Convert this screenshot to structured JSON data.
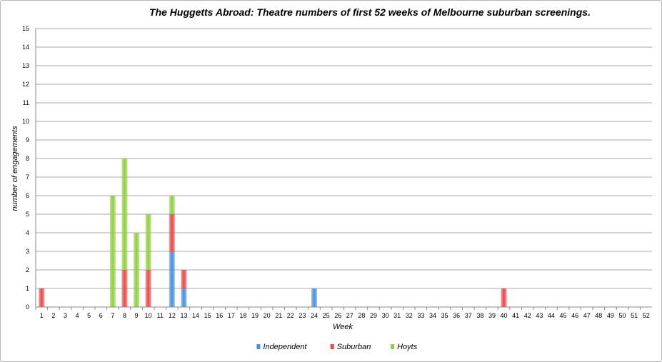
{
  "chart_data": {
    "type": "bar",
    "stacked": true,
    "title": "The Huggetts Abroad: Theatre numbers of first 52 weeks of Melbourne suburban screenings.",
    "xlabel": "Week",
    "ylabel": "number of engagements",
    "ylim": [
      0,
      15
    ],
    "yticks": [
      "0",
      "1",
      "2",
      "3",
      "4",
      "5",
      "6",
      "7",
      "8",
      "9",
      "10",
      "11",
      "12",
      "13",
      "14",
      "15"
    ],
    "categories": [
      "1",
      "2",
      "3",
      "4",
      "5",
      "6",
      "7",
      "8",
      "9",
      "10",
      "11",
      "12",
      "13",
      "14",
      "15",
      "16",
      "17",
      "18",
      "19",
      "20",
      "21",
      "22",
      "23",
      "24",
      "25",
      "26",
      "27",
      "28",
      "29",
      "30",
      "31",
      "32",
      "33",
      "34",
      "35",
      "36",
      "37",
      "38",
      "39",
      "40",
      "41",
      "42",
      "43",
      "44",
      "45",
      "46",
      "47",
      "48",
      "49",
      "50",
      "51",
      "52"
    ],
    "grid": true,
    "legend_position": "bottom",
    "series": [
      {
        "name": "Independent",
        "color": "#4a90d9",
        "values": [
          0,
          0,
          0,
          0,
          0,
          0,
          0,
          0,
          0,
          0,
          0,
          3,
          1,
          0,
          0,
          0,
          0,
          0,
          0,
          0,
          0,
          0,
          0,
          1,
          0,
          0,
          0,
          0,
          0,
          0,
          0,
          0,
          0,
          0,
          0,
          0,
          0,
          0,
          0,
          0,
          0,
          0,
          0,
          0,
          0,
          0,
          0,
          0,
          0,
          0,
          0,
          0
        ]
      },
      {
        "name": "Suburban",
        "color": "#e84a4a",
        "values": [
          1,
          0,
          0,
          0,
          0,
          0,
          0,
          2,
          0,
          2,
          0,
          2,
          1,
          0,
          0,
          0,
          0,
          0,
          0,
          0,
          0,
          0,
          0,
          0,
          0,
          0,
          0,
          0,
          0,
          0,
          0,
          0,
          0,
          0,
          0,
          0,
          0,
          0,
          0,
          1,
          0,
          0,
          0,
          0,
          0,
          0,
          0,
          0,
          0,
          0,
          0,
          0
        ]
      },
      {
        "name": "Hoyts",
        "color": "#8fd13f",
        "values": [
          0,
          0,
          0,
          0,
          0,
          0,
          6,
          6,
          4,
          3,
          0,
          1,
          0,
          0,
          0,
          0,
          0,
          0,
          0,
          0,
          0,
          0,
          0,
          0,
          0,
          0,
          0,
          0,
          0,
          0,
          0,
          0,
          0,
          0,
          0,
          0,
          0,
          0,
          0,
          0,
          0,
          0,
          0,
          0,
          0,
          0,
          0,
          0,
          0,
          0,
          0,
          0
        ]
      }
    ]
  }
}
